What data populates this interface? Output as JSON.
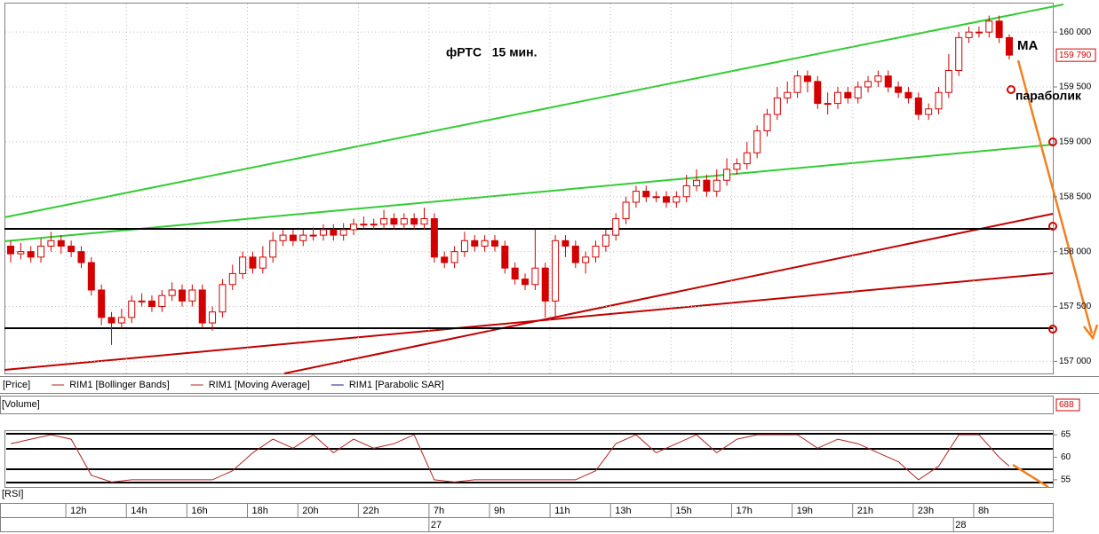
{
  "chart_data": [
    {
      "type": "candlestick",
      "title": "фРТС   15 мин.",
      "categories": [
        null,
        null,
        null,
        null,
        null,
        null,
        "12h",
        null,
        null,
        null,
        null,
        null,
        "14h",
        null,
        null,
        null,
        null,
        null,
        "16h",
        null,
        null,
        null,
        null,
        null,
        "18h",
        null,
        null,
        null,
        null,
        "20h",
        null,
        null,
        null,
        null,
        null,
        "22h",
        null,
        null,
        null,
        null,
        null,
        null,
        "7h",
        null,
        null,
        null,
        null,
        null,
        "9h",
        null,
        null,
        null,
        null,
        null,
        "11h",
        null,
        null,
        null,
        null,
        null,
        "13h",
        null,
        null,
        null,
        null,
        null,
        "15h",
        null,
        null,
        null,
        null,
        null,
        "17h",
        null,
        null,
        null,
        null,
        null,
        "19h",
        null,
        null,
        null,
        null,
        null,
        "21h",
        null,
        null,
        null,
        null,
        null,
        "23h",
        null,
        null,
        null,
        null,
        null,
        "8h",
        null,
        null,
        null
      ],
      "dates": [
        null,
        null,
        null,
        null,
        null,
        null,
        null,
        null,
        null,
        null,
        null,
        null,
        null,
        null,
        null,
        null,
        null,
        null,
        null,
        null,
        null,
        null,
        null,
        null,
        null,
        null,
        null,
        null,
        null,
        null,
        null,
        null,
        null,
        null,
        null,
        null,
        null,
        null,
        null,
        null,
        null,
        null,
        "27",
        null,
        null,
        null,
        null,
        null,
        null,
        null,
        null,
        null,
        null,
        null,
        null,
        null,
        null,
        null,
        null,
        null,
        null,
        null,
        null,
        null,
        null,
        null,
        null,
        null,
        null,
        null,
        null,
        null,
        null,
        null,
        null,
        null,
        null,
        null,
        null,
        null,
        null,
        null,
        null,
        null,
        null,
        null,
        null,
        null,
        null,
        null,
        null,
        null,
        null,
        null,
        "28",
        null,
        null,
        null,
        null,
        null
      ],
      "open": [
        158050,
        157980,
        158000,
        157950,
        158050,
        158100,
        158050,
        158000,
        157900,
        157650,
        157400,
        157350,
        157400,
        157550,
        157550,
        157500,
        157600,
        157650,
        157550,
        157650,
        157350,
        157450,
        157700,
        157800,
        157950,
        157850,
        157950,
        158100,
        158150,
        158100,
        158150,
        158150,
        158200,
        158150,
        158200,
        158250,
        158250,
        158250,
        158300,
        158250,
        158300,
        158250,
        158300,
        157950,
        157900,
        158000,
        158100,
        158050,
        158100,
        158050,
        157850,
        157750,
        157700,
        157850,
        157550,
        158100,
        158050,
        157900,
        157950,
        158050,
        158150,
        158300,
        158450,
        158550,
        158500,
        158500,
        158450,
        158500,
        158600,
        158650,
        158550,
        158650,
        158750,
        158800,
        158900,
        159100,
        159250,
        159400,
        159450,
        159600,
        159550,
        159350,
        159350,
        159450,
        159400,
        159500,
        159550,
        159600,
        159500,
        159450,
        159400,
        159250,
        159300,
        159450,
        159650,
        159950,
        160000,
        160000,
        160100,
        159950
      ],
      "high": [
        158100,
        158080,
        158050,
        158120,
        158180,
        158150,
        158100,
        158050,
        157950,
        157700,
        157450,
        157480,
        157600,
        157620,
        157600,
        157650,
        157720,
        157700,
        157700,
        157700,
        157500,
        157750,
        157880,
        158000,
        158000,
        158050,
        158180,
        158200,
        158200,
        158200,
        158220,
        158250,
        158250,
        158260,
        158300,
        158320,
        158300,
        158380,
        158350,
        158350,
        158350,
        158400,
        158350,
        158000,
        158050,
        158180,
        158150,
        158150,
        158150,
        158100,
        157900,
        157800,
        158200,
        157900,
        158150,
        158150,
        158100,
        158000,
        158100,
        158200,
        158350,
        158500,
        158600,
        158600,
        158550,
        158550,
        158550,
        158700,
        158750,
        158700,
        158750,
        158850,
        158850,
        159000,
        159150,
        159300,
        159500,
        159550,
        159650,
        159650,
        159600,
        159450,
        159500,
        159500,
        159550,
        159600,
        159650,
        159650,
        159550,
        159500,
        159450,
        159350,
        159500,
        159800,
        160000,
        160050,
        160050,
        160150,
        160150,
        159980
      ],
      "low": [
        157900,
        157930,
        157900,
        157900,
        158000,
        157980,
        157950,
        157850,
        157600,
        157330,
        157150,
        157300,
        157350,
        157500,
        157450,
        157450,
        157550,
        157500,
        157500,
        157300,
        157280,
        157400,
        157650,
        157750,
        157800,
        157800,
        157900,
        158050,
        158050,
        158050,
        158100,
        158100,
        158100,
        158100,
        158150,
        158200,
        158200,
        158200,
        158200,
        158200,
        158200,
        158200,
        157900,
        157850,
        157850,
        157950,
        158000,
        158000,
        158000,
        157800,
        157700,
        157650,
        157650,
        157400,
        157400,
        157950,
        157850,
        157800,
        157900,
        158000,
        158100,
        158250,
        158400,
        158450,
        158450,
        158400,
        158400,
        158450,
        158550,
        158500,
        158500,
        158600,
        158700,
        158750,
        158850,
        159050,
        159200,
        159350,
        159400,
        159450,
        159300,
        159250,
        159300,
        159350,
        159350,
        159450,
        159500,
        159450,
        159400,
        159350,
        159200,
        159200,
        159250,
        159400,
        159600,
        159900,
        159950,
        159950,
        159900,
        159750
      ],
      "close": [
        157980,
        158000,
        157950,
        158050,
        158100,
        158050,
        158000,
        157900,
        157650,
        157400,
        157350,
        157400,
        157550,
        157550,
        157500,
        157600,
        157650,
        157550,
        157650,
        157350,
        157450,
        157700,
        157800,
        157950,
        157850,
        157950,
        158100,
        158150,
        158100,
        158150,
        158150,
        158200,
        158150,
        158200,
        158250,
        158250,
        158250,
        158300,
        158250,
        158300,
        158250,
        158300,
        157950,
        157900,
        158000,
        158100,
        158050,
        158100,
        158050,
        157850,
        157750,
        157700,
        157850,
        157550,
        158100,
        158050,
        157900,
        157950,
        158050,
        158150,
        158300,
        158450,
        158550,
        158500,
        158500,
        158450,
        158500,
        158600,
        158650,
        158550,
        158650,
        158750,
        158800,
        158900,
        159100,
        159250,
        159400,
        159450,
        159600,
        159550,
        159350,
        159350,
        159450,
        159400,
        159500,
        159550,
        159600,
        159500,
        159450,
        159400,
        159250,
        159300,
        159450,
        159650,
        159950,
        160000,
        160000,
        160100,
        159950,
        159790
      ],
      "color": "#d40000",
      "up_color": "#ffffff",
      "ylim": [
        156890,
        160260
      ],
      "yticks": [
        {
          "value": 157000,
          "label": "157 000"
        },
        {
          "value": 157500,
          "label": "157 500"
        },
        {
          "value": 158000,
          "label": "158 000"
        },
        {
          "value": 158500,
          "label": "158 500"
        },
        {
          "value": 159000,
          "label": "159 000"
        },
        {
          "value": 159500,
          "label": "159 500"
        },
        {
          "value": 160000,
          "label": "160 000"
        }
      ],
      "last_price": {
        "value": 159790,
        "label": "159 790"
      },
      "grid": true,
      "legend": [
        {
          "name": "[Price]"
        },
        {
          "name": "RIM1 [Bollinger Bands]",
          "color": "#b22222"
        },
        {
          "name": "RIM1 [Moving Average]",
          "color": "#b22222"
        },
        {
          "name": "RIM1 [Parabolic SAR]",
          "color": "#1a1a8c"
        }
      ],
      "annotations": [
        "MA",
        "параболик"
      ]
    },
    {
      "type": "volume",
      "title": "[Volume]",
      "value": 688
    },
    {
      "type": "line",
      "title": "[RSI]",
      "x": [
        0,
        2,
        4,
        6,
        8,
        10,
        12,
        14,
        16,
        18,
        20,
        22,
        24,
        26,
        28,
        30,
        32,
        34,
        36,
        38,
        40,
        42,
        44,
        46,
        48,
        50,
        52,
        54,
        56,
        58,
        60,
        62,
        64,
        66,
        68,
        70,
        72,
        74,
        76,
        78,
        80,
        82,
        84,
        86,
        88,
        90,
        92,
        94,
        96,
        98,
        99
      ],
      "values": [
        63,
        64,
        65,
        64,
        56,
        54.5,
        55,
        55,
        55,
        55,
        55,
        57,
        61,
        64,
        62,
        65,
        61,
        64,
        62,
        63,
        65,
        55,
        54.5,
        55,
        55,
        55,
        55,
        55,
        55,
        57,
        63,
        65,
        61,
        63,
        65,
        61,
        64,
        65,
        65,
        65,
        62,
        64,
        63,
        61,
        59,
        55,
        58,
        65,
        65,
        60,
        58
      ],
      "color": "#b22222",
      "ylim": [
        53.4,
        65.8
      ],
      "yticks": [
        55,
        60,
        65
      ]
    }
  ]
}
